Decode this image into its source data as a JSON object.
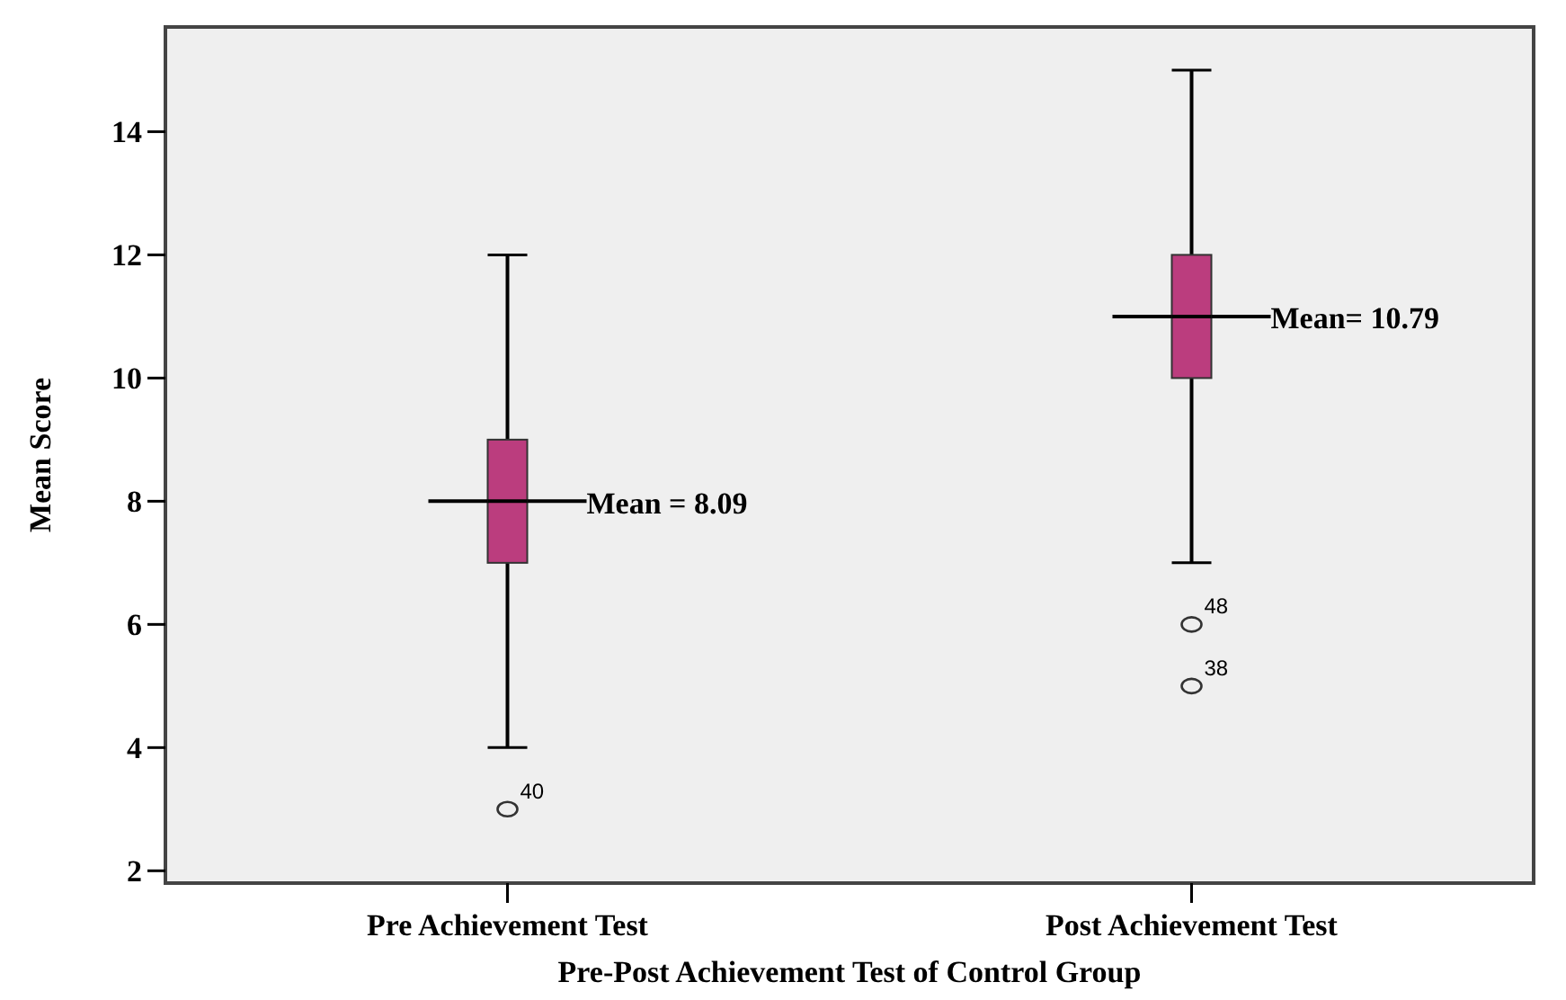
{
  "chart_data": {
    "type": "box",
    "xlabel": "Pre-Post Achievement Test of Control Group",
    "ylabel": "Mean Score",
    "categories": [
      "Pre Achievement Test",
      "Post Achievement Test"
    ],
    "boxes": [
      {
        "low": 4,
        "q1": 7,
        "median": 8,
        "q3": 9,
        "high": 12,
        "outliers": [
          3
        ]
      },
      {
        "low": 7,
        "q1": 10,
        "median": 11,
        "q3": 12,
        "high": 15,
        "outliers": [
          6,
          5
        ]
      }
    ],
    "color": "#bb3d7e",
    "ylim": [
      1.8,
      15.7
    ],
    "yticks": [
      2,
      4,
      6,
      8,
      10,
      12,
      14
    ],
    "grid": false,
    "annotations": [
      {
        "text": "Mean = 8.09",
        "x": "Pre Achievement Test",
        "y": 8
      },
      {
        "text": "Mean= 10.79",
        "x": "Post Achievement Test",
        "y": 11
      },
      "40",
      "48",
      "38"
    ]
  }
}
